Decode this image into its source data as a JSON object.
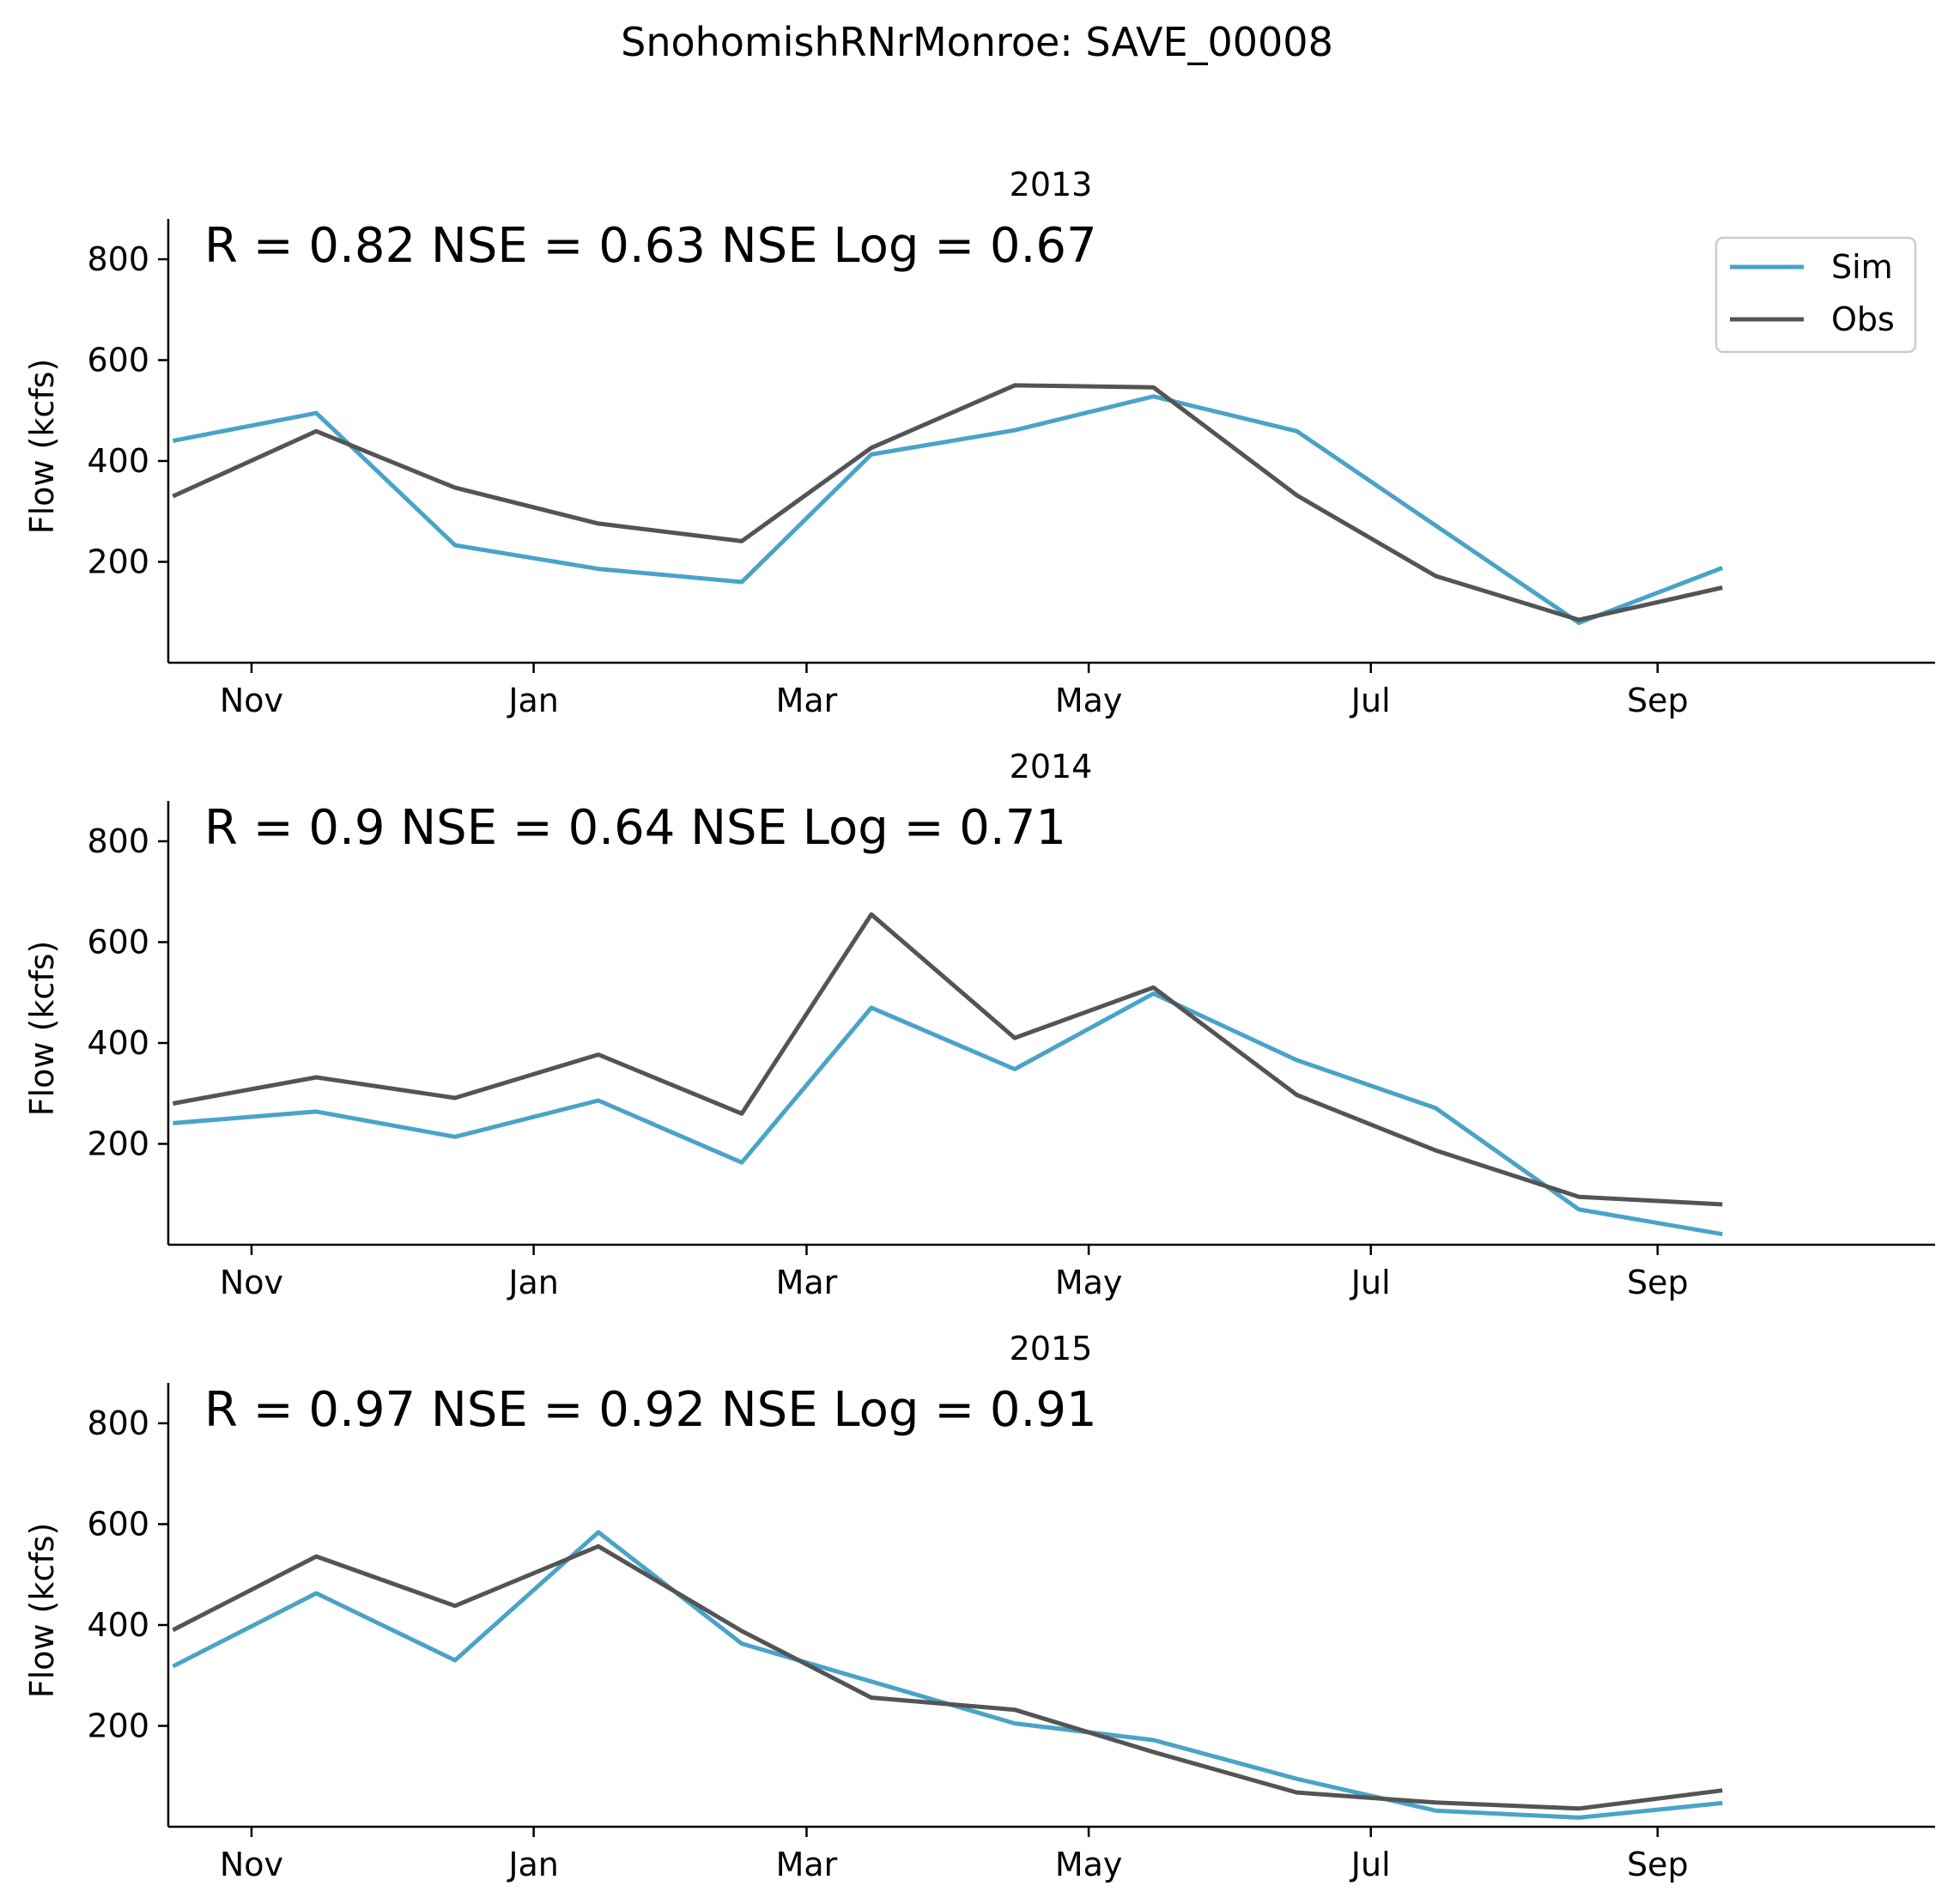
{
  "figure": {
    "title": "SnohomishRNrMonroe: SAVE_00008"
  },
  "chart_data": [
    {
      "type": "line",
      "title": "2013",
      "stats": "R = 0.82  NSE = 0.63  NSE Log = 0.67",
      "xlabel": "",
      "ylabel": "Flow (kcfs)",
      "xticks": [
        "Nov",
        "Jan",
        "Mar",
        "May",
        "Jul",
        "Sep"
      ],
      "yticks": [
        200,
        400,
        600,
        800
      ],
      "xlim": [
        "2012-10-14",
        "2013-10-31"
      ],
      "ylim": [
        0,
        880
      ],
      "grid": false,
      "legend": "top-right",
      "x": [
        "2012-10-01",
        "2012-11-01",
        "2012-12-01",
        "2013-01-01",
        "2013-02-01",
        "2013-03-01",
        "2013-04-01",
        "2013-05-01",
        "2013-06-01",
        "2013-07-01",
        "2013-08-01",
        "2013-09-01"
      ],
      "series": [
        {
          "name": "Sim",
          "color": "#4aa3c8",
          "values": [
            440,
            495,
            233,
            186,
            160,
            413,
            461,
            528,
            459,
            272,
            79,
            188
          ]
        },
        {
          "name": "Obs",
          "color": "#545454",
          "values": [
            330,
            459,
            347,
            276,
            241,
            426,
            550,
            546,
            332,
            172,
            85,
            149
          ]
        }
      ]
    },
    {
      "type": "line",
      "title": "2014",
      "stats": "R = 0.9  NSE = 0.64  NSE Log = 0.71",
      "xlabel": "",
      "ylabel": "Flow (kcfs)",
      "xticks": [
        "Nov",
        "Jan",
        "Mar",
        "May",
        "Jul",
        "Sep"
      ],
      "yticks": [
        200,
        400,
        600,
        800
      ],
      "xlim": [
        "2013-10-14",
        "2014-10-31"
      ],
      "ylim": [
        0,
        880
      ],
      "grid": false,
      "x": [
        "2013-10-01",
        "2013-11-01",
        "2013-12-01",
        "2014-01-01",
        "2014-02-01",
        "2014-03-01",
        "2014-04-01",
        "2014-05-01",
        "2014-06-01",
        "2014-07-01",
        "2014-08-01",
        "2014-09-01"
      ],
      "series": [
        {
          "name": "Sim",
          "color": "#4aa3c8",
          "values": [
            241,
            264,
            214,
            286,
            163,
            470,
            348,
            498,
            366,
            271,
            70,
            21
          ]
        },
        {
          "name": "Obs",
          "color": "#545454",
          "values": [
            280,
            332,
            291,
            377,
            260,
            655,
            410,
            510,
            297,
            187,
            95,
            80
          ]
        }
      ]
    },
    {
      "type": "line",
      "title": "2015",
      "stats": "R = 0.97  NSE = 0.92  NSE Log = 0.91",
      "xlabel": "",
      "ylabel": "Flow (kcfs)",
      "xticks": [
        "Nov",
        "Jan",
        "Mar",
        "May",
        "Jul",
        "Sep"
      ],
      "yticks": [
        200,
        400,
        600,
        800
      ],
      "xlim": [
        "2014-10-14",
        "2015-10-31"
      ],
      "ylim": [
        0,
        880
      ],
      "grid": false,
      "x": [
        "2014-10-01",
        "2014-11-01",
        "2014-12-01",
        "2015-01-01",
        "2015-02-01",
        "2015-03-01",
        "2015-04-01",
        "2015-05-01",
        "2015-06-01",
        "2015-07-01",
        "2015-08-01",
        "2015-09-01"
      ],
      "series": [
        {
          "name": "Sim",
          "color": "#4aa3c8",
          "values": [
            318,
            463,
            330,
            584,
            363,
            288,
            205,
            172,
            95,
            32,
            18,
            47
          ]
        },
        {
          "name": "Obs",
          "color": "#545454",
          "values": [
            390,
            536,
            438,
            556,
            388,
            256,
            232,
            148,
            68,
            48,
            36,
            72
          ]
        }
      ]
    }
  ]
}
